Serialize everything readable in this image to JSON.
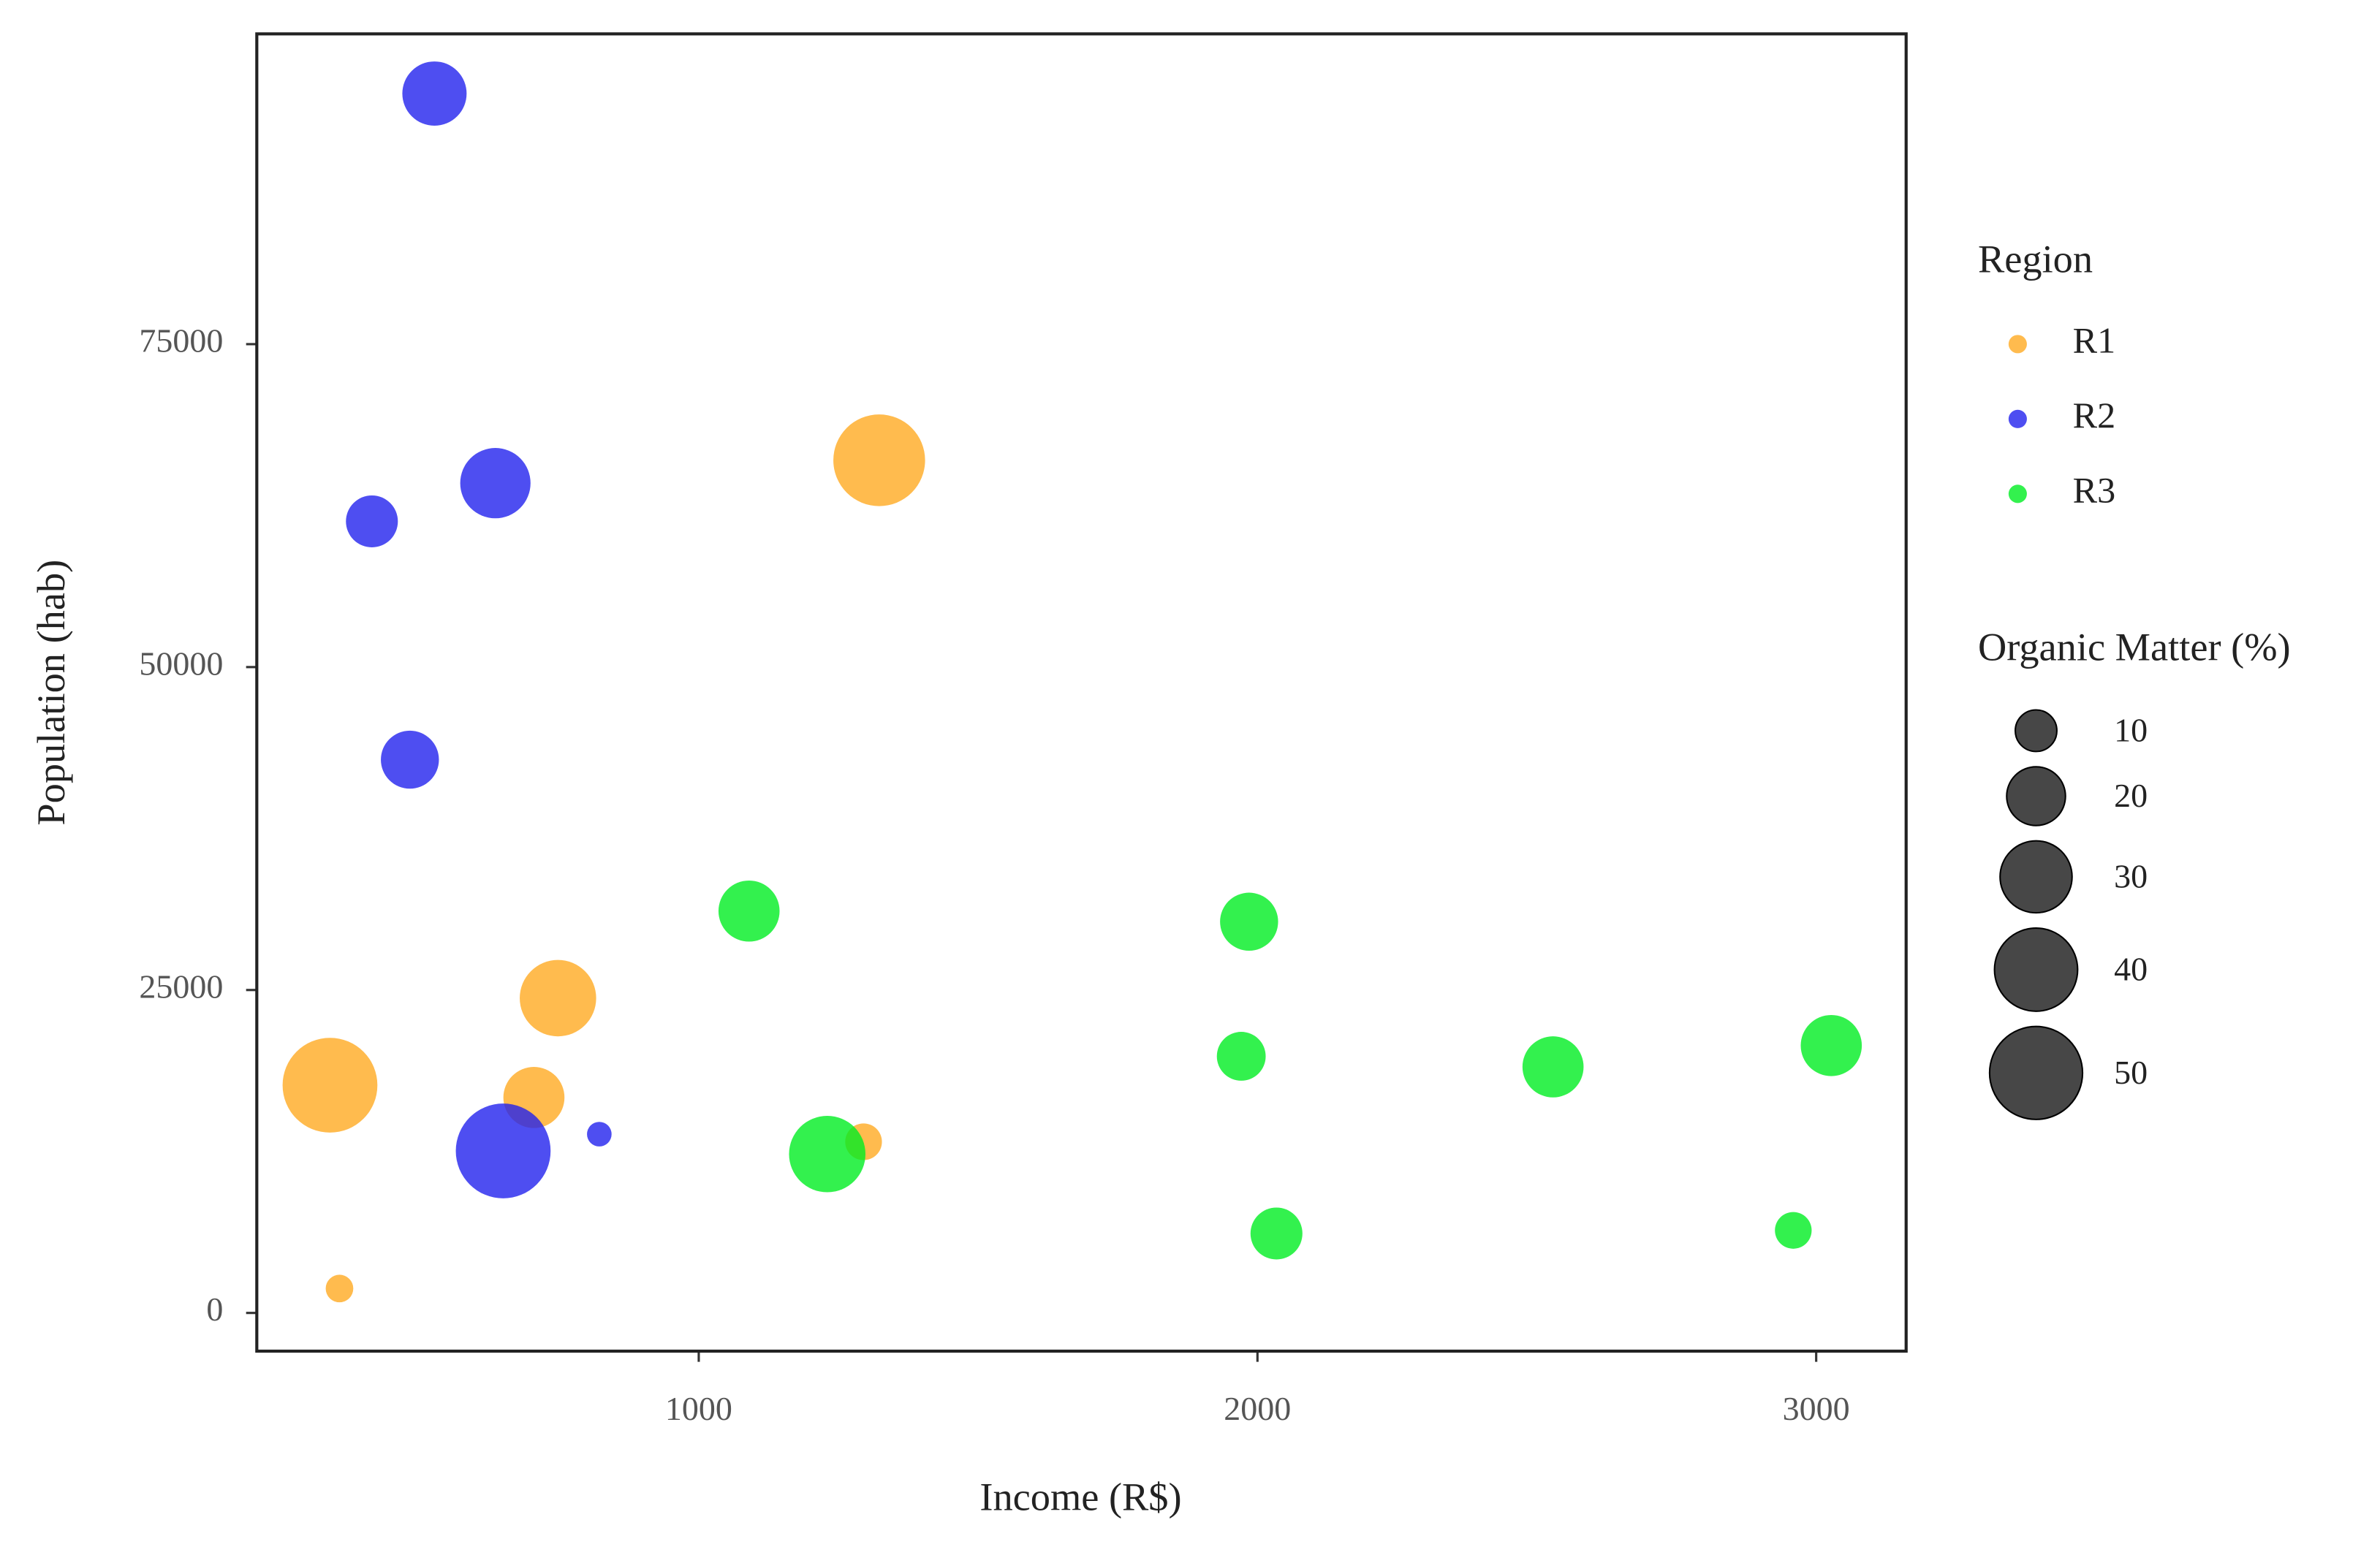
{
  "chart_data": {
    "type": "bubble",
    "x_label": "Income (R$)",
    "y_label": "Population (hab)",
    "xlim": [
      209,
      3161
    ],
    "ylim": [
      -2958,
      99020
    ],
    "xticks": [
      1000,
      2000,
      3000
    ],
    "yticks": [
      0,
      25000,
      50000,
      75000
    ],
    "color_legend_title": "Region",
    "size_legend_title": "Organic Matter (%)",
    "size_legend": [
      10,
      20,
      30,
      40,
      50
    ],
    "series": [
      {
        "name": "R1",
        "color": "#FFAA22",
        "x": [
          340,
          357,
          705,
          748,
          1295,
          1323
        ],
        "y": [
          17630,
          1890,
          16680,
          24370,
          13250,
          66010
        ],
        "size": [
          52,
          4.4,
          21.6,
          33.8,
          7.8,
          48.7
        ]
      },
      {
        "name": "R2",
        "color": "#2222EE",
        "x": [
          527,
          415,
          636,
          483,
          650,
          822
        ],
        "y": [
          94400,
          61280,
          64240,
          42830,
          12540,
          13840
        ],
        "size": [
          23.9,
          15.6,
          28.6,
          19.5,
          52,
          3.5
        ]
      },
      {
        "name": "R3",
        "color": "#00EE22",
        "x": [
          1090,
          1230,
          1985,
          1971,
          2034,
          2529,
          3027,
          2959
        ],
        "y": [
          31110,
          12300,
          30290,
          19870,
          6150,
          19050,
          20700,
          6390
        ],
        "size": [
          21.6,
          33.8,
          19.5,
          13.8,
          15.6,
          21.6,
          21.6,
          7.8
        ]
      }
    ]
  }
}
